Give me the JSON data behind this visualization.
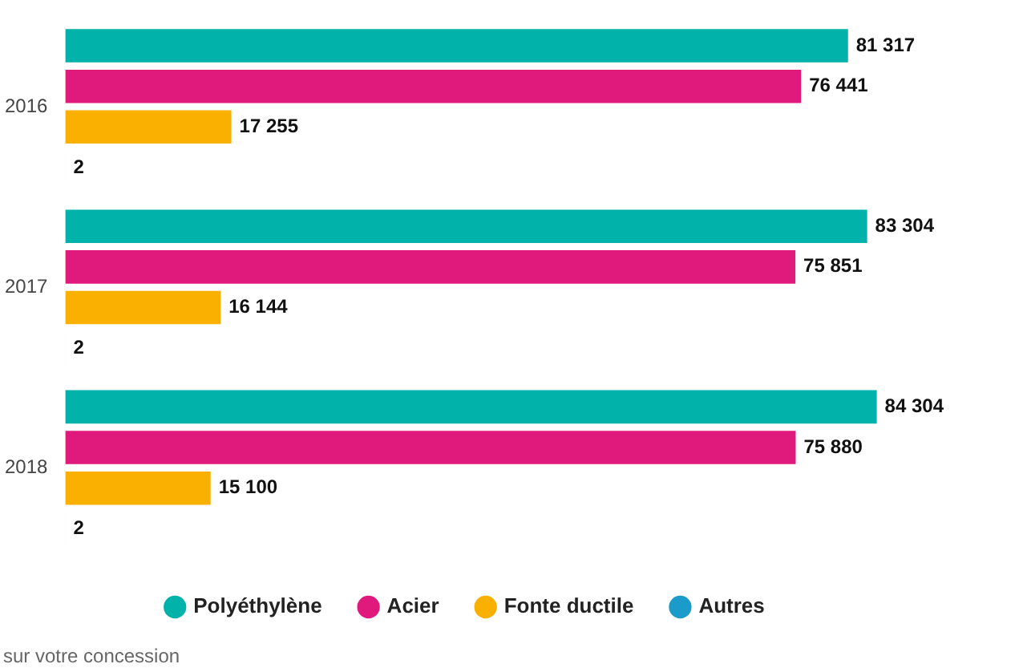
{
  "chart_data": {
    "type": "bar",
    "orientation": "horizontal",
    "categories": [
      "2016",
      "2017",
      "2018"
    ],
    "series": [
      {
        "name": "Polyéthylène",
        "color": "#00b2a9",
        "values": [
          81317,
          83304,
          84304
        ],
        "value_labels": [
          "81 317",
          "83 304",
          "84 304"
        ]
      },
      {
        "name": "Acier",
        "color": "#e0197d",
        "values": [
          76441,
          75851,
          75880
        ],
        "value_labels": [
          "76 441",
          "75 851",
          "75 880"
        ]
      },
      {
        "name": "Fonte ductile",
        "color": "#f9b000",
        "values": [
          17255,
          16144,
          15100
        ],
        "value_labels": [
          "17 255",
          "16 144",
          "15 100"
        ]
      },
      {
        "name": "Autres",
        "color": "#1a9bc9",
        "values": [
          2,
          2,
          2
        ],
        "value_labels": [
          "2",
          "2",
          "2"
        ]
      }
    ],
    "legend": "bottom",
    "tick_labels": "y",
    "annotations": [
      "sur votre concession"
    ]
  }
}
